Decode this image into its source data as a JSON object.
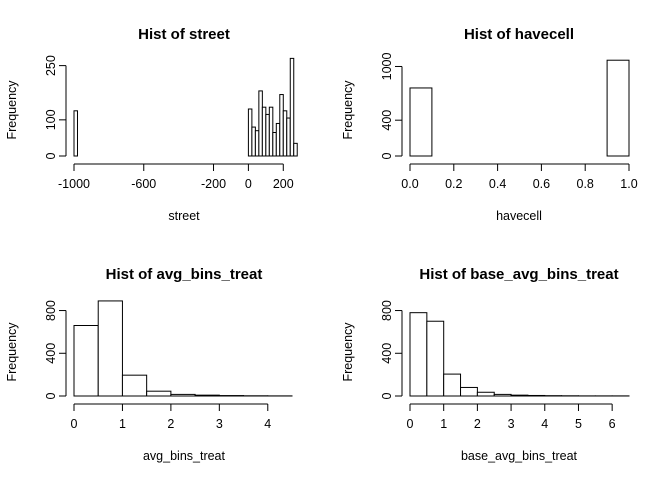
{
  "chart_data": [
    {
      "type": "bar",
      "title": "Hist of street",
      "xlabel": "street",
      "ylabel": "Frequency",
      "xticks": [
        -1000,
        -600,
        -200,
        0,
        200
      ],
      "xtick_labels": [
        "-1000",
        "-600",
        "-200",
        "0",
        "200"
      ],
      "yticks": [
        0,
        100,
        250
      ],
      "ytick_labels": [
        "0",
        "100",
        "250"
      ],
      "xlim": [
        -1000,
        250
      ],
      "ylim": [
        0,
        260
      ],
      "bins": [
        [
          -1000,
          -980,
          125
        ],
        [
          0,
          20,
          130
        ],
        [
          20,
          40,
          80
        ],
        [
          40,
          60,
          70
        ],
        [
          60,
          80,
          180
        ],
        [
          80,
          100,
          135
        ],
        [
          100,
          120,
          115
        ],
        [
          120,
          140,
          135
        ],
        [
          140,
          160,
          65
        ],
        [
          160,
          180,
          90
        ],
        [
          180,
          200,
          170
        ],
        [
          200,
          220,
          125
        ],
        [
          220,
          240,
          105
        ],
        [
          240,
          260,
          270
        ],
        [
          260,
          280,
          35
        ]
      ]
    },
    {
      "type": "bar",
      "title": "Hist of havecell",
      "xlabel": "havecell",
      "ylabel": "Frequency",
      "xticks": [
        0,
        0.2,
        0.4,
        0.6,
        0.8,
        1.0
      ],
      "xtick_labels": [
        "0.0",
        "0.2",
        "0.4",
        "0.6",
        "0.8",
        "1.0"
      ],
      "yticks": [
        0,
        400,
        1000
      ],
      "ytick_labels": [
        "0",
        "400",
        "1000"
      ],
      "xlim": [
        0,
        1
      ],
      "ylim": [
        0,
        1050
      ],
      "bins": [
        [
          0,
          0.1,
          760
        ],
        [
          0.1,
          0.2,
          0
        ],
        [
          0.2,
          0.3,
          0
        ],
        [
          0.3,
          0.4,
          0
        ],
        [
          0.4,
          0.5,
          0
        ],
        [
          0.5,
          0.6,
          0
        ],
        [
          0.6,
          0.7,
          0
        ],
        [
          0.7,
          0.8,
          0
        ],
        [
          0.8,
          0.9,
          0
        ],
        [
          0.9,
          1.0,
          1070
        ]
      ]
    },
    {
      "type": "bar",
      "title": "Hist of avg_bins_treat",
      "xlabel": "avg_bins_treat",
      "ylabel": "Frequency",
      "xticks": [
        0,
        1,
        2,
        3,
        4
      ],
      "xtick_labels": [
        "0",
        "1",
        "2",
        "3",
        "4"
      ],
      "yticks": [
        0,
        400,
        800
      ],
      "ytick_labels": [
        "0",
        "400",
        "800"
      ],
      "xlim": [
        0,
        4.5
      ],
      "ylim": [
        0,
        880
      ],
      "bins": [
        [
          0,
          0.5,
          660
        ],
        [
          0.5,
          1,
          890
        ],
        [
          1,
          1.5,
          195
        ],
        [
          1.5,
          2,
          45
        ],
        [
          2,
          2.5,
          15
        ],
        [
          2.5,
          3,
          8
        ],
        [
          3,
          3.5,
          4
        ],
        [
          3.5,
          4,
          2
        ],
        [
          4,
          4.5,
          1
        ]
      ]
    },
    {
      "type": "bar",
      "title": "Hist of base_avg_bins_treat",
      "xlabel": "base_avg_bins_treat",
      "ylabel": "Frequency",
      "xticks": [
        0,
        1,
        2,
        3,
        4,
        5,
        6
      ],
      "xtick_labels": [
        "0",
        "1",
        "2",
        "3",
        "4",
        "5",
        "6"
      ],
      "yticks": [
        0,
        400,
        800
      ],
      "ytick_labels": [
        "0",
        "400",
        "800"
      ],
      "xlim": [
        0,
        6.5
      ],
      "ylim": [
        0,
        880
      ],
      "bins": [
        [
          0,
          0.5,
          780
        ],
        [
          0.5,
          1,
          700
        ],
        [
          1,
          1.5,
          205
        ],
        [
          1.5,
          2,
          80
        ],
        [
          2,
          2.5,
          35
        ],
        [
          2.5,
          3,
          15
        ],
        [
          3,
          3.5,
          8
        ],
        [
          3.5,
          4,
          5
        ],
        [
          4,
          4.5,
          3
        ],
        [
          4.5,
          5,
          2
        ],
        [
          5,
          5.5,
          1
        ],
        [
          5.5,
          6,
          1
        ],
        [
          6,
          6.5,
          1
        ]
      ]
    }
  ]
}
